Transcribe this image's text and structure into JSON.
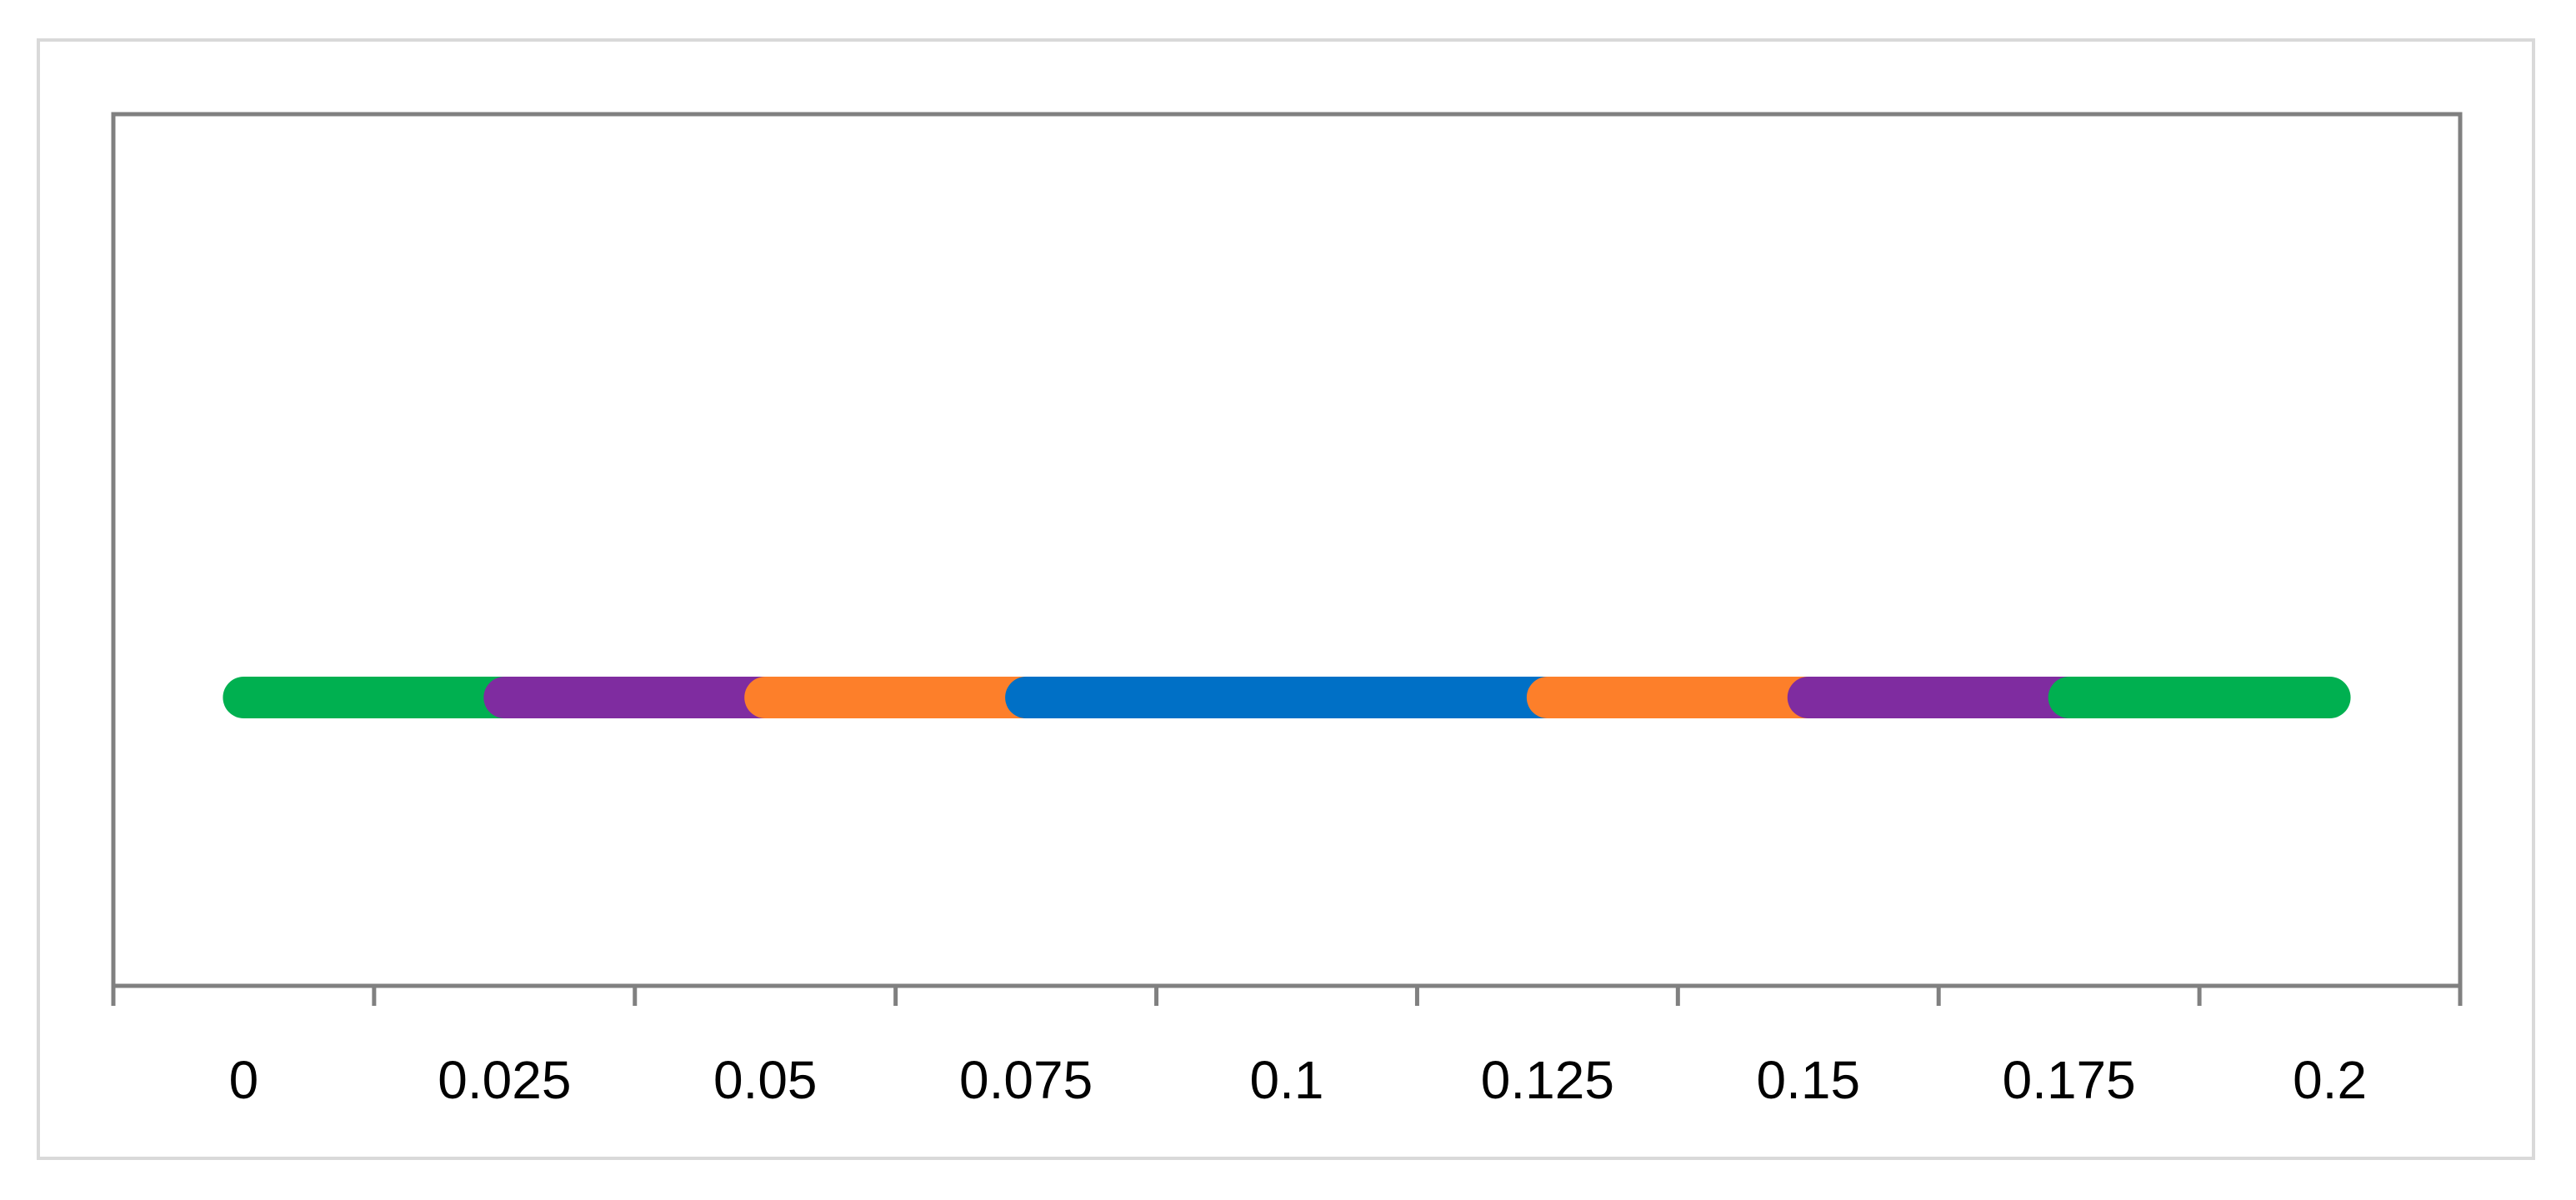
{
  "chart_data": {
    "type": "bar",
    "orientation": "horizontal",
    "x": [
      "0",
      "0.025",
      "0.05",
      "0.075",
      "0.1",
      "0.125",
      "0.15",
      "0.175",
      "0.2"
    ],
    "segments": [
      {
        "color": "#00b050",
        "start": 0,
        "end": 0.025
      },
      {
        "color": "#7f2ca0",
        "start": 0.025,
        "end": 0.05
      },
      {
        "color": "#fd7f2a",
        "start": 0.05,
        "end": 0.075
      },
      {
        "color": "#0070c6",
        "start": 0.075,
        "end": 0.125
      },
      {
        "color": "#fd7f2a",
        "start": 0.125,
        "end": 0.15
      },
      {
        "color": "#7f2ca0",
        "start": 0.15,
        "end": 0.175
      },
      {
        "color": "#00b050",
        "start": 0.175,
        "end": 0.2
      }
    ],
    "colors": {
      "axis": "#808080",
      "frame": "#d9d9d9"
    }
  }
}
